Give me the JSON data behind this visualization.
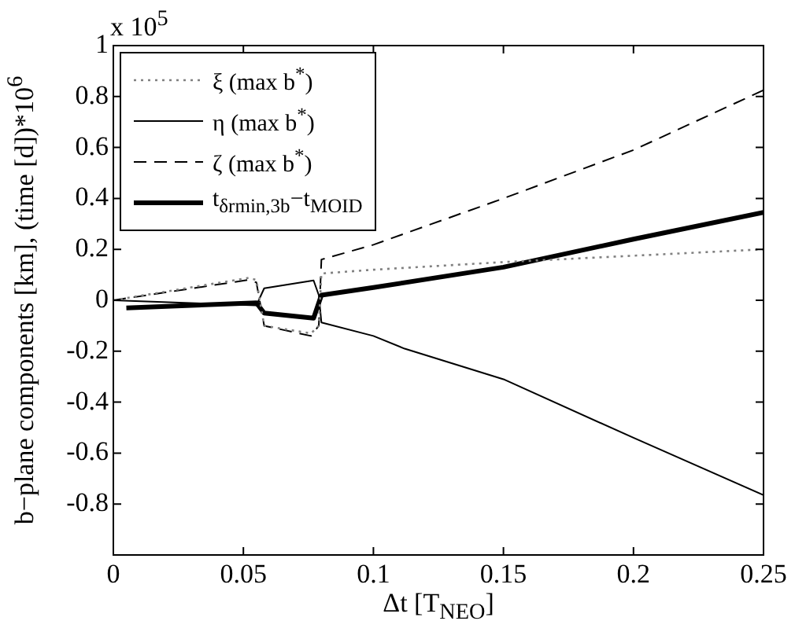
{
  "chart_data": {
    "type": "line",
    "xlabel": "Δt [T$_{NEO}$]",
    "ylabel": "b−plane components [km], (time [d])*10$^{6}$",
    "annotations": [
      "x 10$^{5}$"
    ],
    "xlim": [
      0,
      0.25
    ],
    "xticks": [
      0,
      0.05,
      0.1,
      0.15,
      0.2,
      0.25
    ],
    "ylim": [
      -1,
      1
    ],
    "yticks": [
      -0.8,
      -0.6,
      -0.4,
      -0.2,
      0,
      0.2,
      0.4,
      0.6,
      0.8,
      1
    ],
    "grid": false,
    "legend": "top left",
    "marker": "none",
    "series": [
      {
        "name": "ξ (max b$^{*}$)",
        "color": "#808080",
        "line_style": "dotted",
        "x": [
          0,
          0.052,
          0.055,
          0.058,
          0.076,
          0.079,
          0.08,
          0.1,
          0.15,
          0.2,
          0.25
        ],
        "values": [
          0,
          0.088,
          0.08,
          -0.1,
          -0.13,
          -0.1,
          0.105,
          0.12,
          0.15,
          0.175,
          0.2
        ]
      },
      {
        "name": "η (max b$^{*}$)",
        "color": "#000000",
        "line_style": "solid",
        "x": [
          0,
          0.055,
          0.058,
          0.077,
          0.079,
          0.08,
          0.1,
          0.112,
          0.15,
          0.2,
          0.25
        ],
        "values": [
          0,
          -0.02,
          0.047,
          0.078,
          0.02,
          -0.087,
          -0.14,
          -0.19,
          -0.31,
          -0.54,
          -0.765
        ]
      },
      {
        "name": "ζ (max b$^{*}$)",
        "color": "#000000",
        "line_style": "dashed",
        "x": [
          0,
          0.052,
          0.055,
          0.058,
          0.076,
          0.079,
          0.08,
          0.1,
          0.15,
          0.2,
          0.25
        ],
        "values": [
          0,
          0.08,
          0.07,
          -0.1,
          -0.14,
          -0.1,
          0.16,
          0.218,
          0.4,
          0.59,
          0.825
        ]
      },
      {
        "name": "t$_{δr}$$_{min,3b}$−t$_{MOID}$",
        "color": "#000000",
        "line_style": "solid",
        "x": [
          0.005,
          0.055,
          0.058,
          0.077,
          0.08,
          0.1,
          0.15,
          0.2,
          0.25
        ],
        "values": [
          -0.03,
          -0.01,
          -0.05,
          -0.07,
          0.02,
          0.05,
          0.13,
          0.24,
          0.345
        ]
      }
    ]
  }
}
